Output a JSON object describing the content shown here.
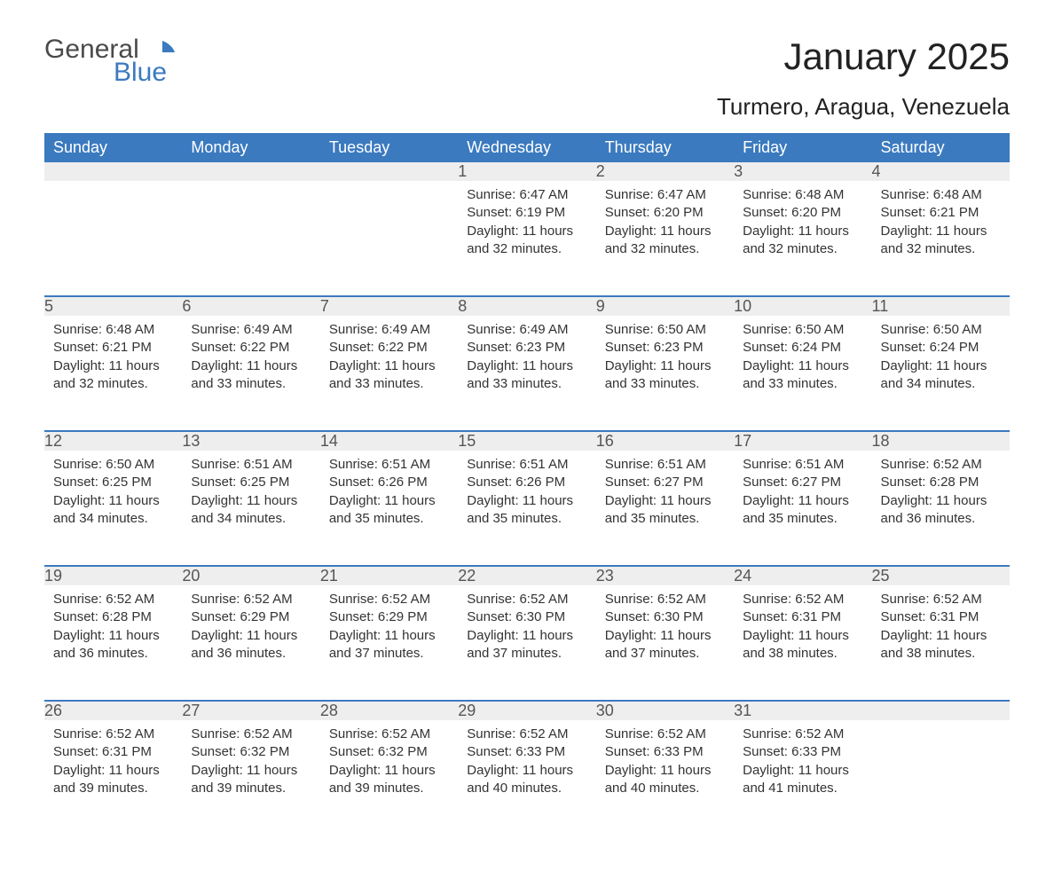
{
  "brand": {
    "top": "General",
    "bottom": "Blue"
  },
  "title": "January 2025",
  "subtitle": "Turmero, Aragua, Venezuela",
  "colors": {
    "header_bg": "#3b7abf",
    "header_text": "#ffffff",
    "daynum_bg": "#eeeeee",
    "daynum_border": "#3b7abf",
    "body_text": "#333333",
    "bg": "#ffffff"
  },
  "daysOfWeek": [
    "Sunday",
    "Monday",
    "Tuesday",
    "Wednesday",
    "Thursday",
    "Friday",
    "Saturday"
  ],
  "weeks": [
    [
      null,
      null,
      null,
      {
        "n": "1",
        "sr": "Sunrise: 6:47 AM",
        "ss": "Sunset: 6:19 PM",
        "dl": "Daylight: 11 hours and 32 minutes."
      },
      {
        "n": "2",
        "sr": "Sunrise: 6:47 AM",
        "ss": "Sunset: 6:20 PM",
        "dl": "Daylight: 11 hours and 32 minutes."
      },
      {
        "n": "3",
        "sr": "Sunrise: 6:48 AM",
        "ss": "Sunset: 6:20 PM",
        "dl": "Daylight: 11 hours and 32 minutes."
      },
      {
        "n": "4",
        "sr": "Sunrise: 6:48 AM",
        "ss": "Sunset: 6:21 PM",
        "dl": "Daylight: 11 hours and 32 minutes."
      }
    ],
    [
      {
        "n": "5",
        "sr": "Sunrise: 6:48 AM",
        "ss": "Sunset: 6:21 PM",
        "dl": "Daylight: 11 hours and 32 minutes."
      },
      {
        "n": "6",
        "sr": "Sunrise: 6:49 AM",
        "ss": "Sunset: 6:22 PM",
        "dl": "Daylight: 11 hours and 33 minutes."
      },
      {
        "n": "7",
        "sr": "Sunrise: 6:49 AM",
        "ss": "Sunset: 6:22 PM",
        "dl": "Daylight: 11 hours and 33 minutes."
      },
      {
        "n": "8",
        "sr": "Sunrise: 6:49 AM",
        "ss": "Sunset: 6:23 PM",
        "dl": "Daylight: 11 hours and 33 minutes."
      },
      {
        "n": "9",
        "sr": "Sunrise: 6:50 AM",
        "ss": "Sunset: 6:23 PM",
        "dl": "Daylight: 11 hours and 33 minutes."
      },
      {
        "n": "10",
        "sr": "Sunrise: 6:50 AM",
        "ss": "Sunset: 6:24 PM",
        "dl": "Daylight: 11 hours and 33 minutes."
      },
      {
        "n": "11",
        "sr": "Sunrise: 6:50 AM",
        "ss": "Sunset: 6:24 PM",
        "dl": "Daylight: 11 hours and 34 minutes."
      }
    ],
    [
      {
        "n": "12",
        "sr": "Sunrise: 6:50 AM",
        "ss": "Sunset: 6:25 PM",
        "dl": "Daylight: 11 hours and 34 minutes."
      },
      {
        "n": "13",
        "sr": "Sunrise: 6:51 AM",
        "ss": "Sunset: 6:25 PM",
        "dl": "Daylight: 11 hours and 34 minutes."
      },
      {
        "n": "14",
        "sr": "Sunrise: 6:51 AM",
        "ss": "Sunset: 6:26 PM",
        "dl": "Daylight: 11 hours and 35 minutes."
      },
      {
        "n": "15",
        "sr": "Sunrise: 6:51 AM",
        "ss": "Sunset: 6:26 PM",
        "dl": "Daylight: 11 hours and 35 minutes."
      },
      {
        "n": "16",
        "sr": "Sunrise: 6:51 AM",
        "ss": "Sunset: 6:27 PM",
        "dl": "Daylight: 11 hours and 35 minutes."
      },
      {
        "n": "17",
        "sr": "Sunrise: 6:51 AM",
        "ss": "Sunset: 6:27 PM",
        "dl": "Daylight: 11 hours and 35 minutes."
      },
      {
        "n": "18",
        "sr": "Sunrise: 6:52 AM",
        "ss": "Sunset: 6:28 PM",
        "dl": "Daylight: 11 hours and 36 minutes."
      }
    ],
    [
      {
        "n": "19",
        "sr": "Sunrise: 6:52 AM",
        "ss": "Sunset: 6:28 PM",
        "dl": "Daylight: 11 hours and 36 minutes."
      },
      {
        "n": "20",
        "sr": "Sunrise: 6:52 AM",
        "ss": "Sunset: 6:29 PM",
        "dl": "Daylight: 11 hours and 36 minutes."
      },
      {
        "n": "21",
        "sr": "Sunrise: 6:52 AM",
        "ss": "Sunset: 6:29 PM",
        "dl": "Daylight: 11 hours and 37 minutes."
      },
      {
        "n": "22",
        "sr": "Sunrise: 6:52 AM",
        "ss": "Sunset: 6:30 PM",
        "dl": "Daylight: 11 hours and 37 minutes."
      },
      {
        "n": "23",
        "sr": "Sunrise: 6:52 AM",
        "ss": "Sunset: 6:30 PM",
        "dl": "Daylight: 11 hours and 37 minutes."
      },
      {
        "n": "24",
        "sr": "Sunrise: 6:52 AM",
        "ss": "Sunset: 6:31 PM",
        "dl": "Daylight: 11 hours and 38 minutes."
      },
      {
        "n": "25",
        "sr": "Sunrise: 6:52 AM",
        "ss": "Sunset: 6:31 PM",
        "dl": "Daylight: 11 hours and 38 minutes."
      }
    ],
    [
      {
        "n": "26",
        "sr": "Sunrise: 6:52 AM",
        "ss": "Sunset: 6:31 PM",
        "dl": "Daylight: 11 hours and 39 minutes."
      },
      {
        "n": "27",
        "sr": "Sunrise: 6:52 AM",
        "ss": "Sunset: 6:32 PM",
        "dl": "Daylight: 11 hours and 39 minutes."
      },
      {
        "n": "28",
        "sr": "Sunrise: 6:52 AM",
        "ss": "Sunset: 6:32 PM",
        "dl": "Daylight: 11 hours and 39 minutes."
      },
      {
        "n": "29",
        "sr": "Sunrise: 6:52 AM",
        "ss": "Sunset: 6:33 PM",
        "dl": "Daylight: 11 hours and 40 minutes."
      },
      {
        "n": "30",
        "sr": "Sunrise: 6:52 AM",
        "ss": "Sunset: 6:33 PM",
        "dl": "Daylight: 11 hours and 40 minutes."
      },
      {
        "n": "31",
        "sr": "Sunrise: 6:52 AM",
        "ss": "Sunset: 6:33 PM",
        "dl": "Daylight: 11 hours and 41 minutes."
      },
      null
    ]
  ]
}
